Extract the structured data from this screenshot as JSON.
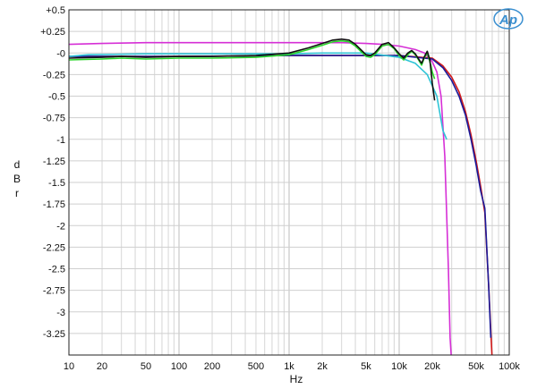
{
  "logo": {
    "text": "Ap"
  },
  "chart_data": {
    "type": "line",
    "x_scale": "log",
    "xlabel": "Hz",
    "ylabel": "dBr",
    "xlim": [
      10,
      100000
    ],
    "ylim": [
      -3.5,
      0.5
    ],
    "grid": true,
    "x_ticks": [
      {
        "value": 10,
        "label": "10"
      },
      {
        "value": 20,
        "label": "20"
      },
      {
        "value": 50,
        "label": "50"
      },
      {
        "value": 100,
        "label": "100"
      },
      {
        "value": 200,
        "label": "200"
      },
      {
        "value": 500,
        "label": "500"
      },
      {
        "value": 1000,
        "label": "1k"
      },
      {
        "value": 2000,
        "label": "2k"
      },
      {
        "value": 5000,
        "label": "5k"
      },
      {
        "value": 10000,
        "label": "10k"
      },
      {
        "value": 20000,
        "label": "20k"
      },
      {
        "value": 50000,
        "label": "50k"
      },
      {
        "value": 100000,
        "label": "100k"
      }
    ],
    "y_ticks": [
      {
        "value": 0.5,
        "label": "+0.5"
      },
      {
        "value": 0.25,
        "label": "+0.25"
      },
      {
        "value": 0,
        "label": "-0"
      },
      {
        "value": -0.25,
        "label": "-0.25"
      },
      {
        "value": -0.5,
        "label": "-0.5"
      },
      {
        "value": -0.75,
        "label": "-0.75"
      },
      {
        "value": -1,
        "label": "-1"
      },
      {
        "value": -1.25,
        "label": "-1.25"
      },
      {
        "value": -1.5,
        "label": "-1.5"
      },
      {
        "value": -1.75,
        "label": "-1.75"
      },
      {
        "value": -2,
        "label": "-2"
      },
      {
        "value": -2.25,
        "label": "-2.25"
      },
      {
        "value": -2.5,
        "label": "-2.5"
      },
      {
        "value": -2.75,
        "label": "-2.75"
      },
      {
        "value": -3,
        "label": "-3"
      },
      {
        "value": -3.25,
        "label": "-3.25"
      }
    ],
    "series": [
      {
        "color": "#d62fd6",
        "x": [
          10,
          20,
          50,
          100,
          200,
          500,
          1000,
          2000,
          3000,
          5000,
          7000,
          10000,
          14000,
          17000,
          20000,
          22000,
          24000,
          26000,
          28000,
          29000,
          30000
        ],
        "y": [
          0.1,
          0.11,
          0.12,
          0.12,
          0.12,
          0.12,
          0.12,
          0.12,
          0.12,
          0.11,
          0.1,
          0.08,
          0.04,
          0.0,
          -0.1,
          -0.22,
          -0.5,
          -1.2,
          -2.5,
          -3.3,
          -3.6
        ]
      },
      {
        "color": "#d01818",
        "x": [
          10,
          50,
          100,
          1000,
          5000,
          10000,
          20000,
          25000,
          30000,
          35000,
          40000,
          45000,
          50000,
          55000,
          60000,
          65000,
          70000
        ],
        "y": [
          -0.04,
          -0.04,
          -0.04,
          -0.03,
          -0.03,
          -0.03,
          -0.06,
          -0.15,
          -0.28,
          -0.45,
          -0.68,
          -0.95,
          -1.25,
          -1.55,
          -1.85,
          -2.7,
          -3.55
        ]
      },
      {
        "color": "#1a1a99",
        "x": [
          10,
          50,
          100,
          1000,
          5000,
          10000,
          20000,
          25000,
          30000,
          35000,
          40000,
          45000,
          50000,
          55000,
          60000,
          65000,
          68000
        ],
        "y": [
          -0.04,
          -0.04,
          -0.04,
          -0.03,
          -0.03,
          -0.03,
          -0.07,
          -0.17,
          -0.32,
          -0.5,
          -0.72,
          -1.0,
          -1.3,
          -1.6,
          -1.8,
          -2.7,
          -3.3
        ]
      },
      {
        "color": "#2ec4d6",
        "x": [
          10,
          15,
          50,
          100,
          500,
          1000,
          2000,
          5000,
          10000,
          14000,
          18000,
          22000,
          25000,
          27000
        ],
        "y": [
          -0.04,
          -0.02,
          -0.01,
          -0.01,
          -0.01,
          -0.01,
          0.0,
          0.0,
          -0.05,
          -0.12,
          -0.25,
          -0.5,
          -0.9,
          -1.0
        ]
      },
      {
        "color": "#2ad62a",
        "x": [
          10,
          20,
          30,
          50,
          100,
          200,
          500,
          1000,
          1500,
          2000,
          2500,
          3000,
          3500,
          4000,
          5000,
          5500,
          6000,
          7000,
          8000,
          9000,
          10000,
          11000,
          12000,
          13000,
          14000,
          15000,
          16000,
          17000,
          18000,
          19000,
          20000,
          21000
        ],
        "y": [
          -0.08,
          -0.07,
          -0.06,
          -0.07,
          -0.06,
          -0.06,
          -0.05,
          -0.02,
          0.04,
          0.09,
          0.13,
          0.14,
          0.13,
          0.08,
          -0.04,
          -0.05,
          -0.02,
          0.08,
          0.1,
          0.05,
          -0.03,
          -0.08,
          -0.02,
          0.02,
          -0.02,
          -0.08,
          -0.14,
          -0.05,
          0.0,
          -0.1,
          -0.22,
          -0.3
        ]
      },
      {
        "color": "#111111",
        "x": [
          10,
          20,
          30,
          50,
          100,
          200,
          500,
          1000,
          1500,
          2000,
          2500,
          3000,
          3500,
          4000,
          5000,
          5500,
          6000,
          7000,
          8000,
          9000,
          10000,
          11000,
          12000,
          13000,
          14000,
          15000,
          16000,
          17000,
          18000,
          19000,
          20000,
          21000
        ],
        "y": [
          -0.06,
          -0.05,
          -0.04,
          -0.05,
          -0.04,
          -0.04,
          -0.03,
          0.0,
          0.06,
          0.11,
          0.15,
          0.16,
          0.15,
          0.1,
          -0.02,
          -0.03,
          0.0,
          0.1,
          0.12,
          0.06,
          -0.01,
          -0.06,
          0.0,
          0.03,
          -0.01,
          -0.07,
          -0.12,
          -0.04,
          0.02,
          -0.08,
          -0.35,
          -0.55
        ]
      }
    ]
  }
}
